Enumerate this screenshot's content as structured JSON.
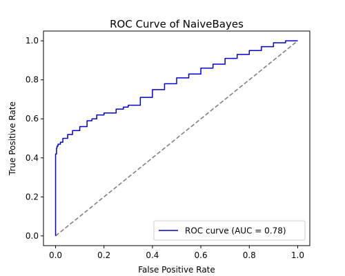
{
  "chart_data": {
    "type": "line",
    "title": "ROC Curve of NaiveBayes",
    "xlabel": "False Positive Rate",
    "ylabel": "True Positive Rate",
    "xlim": [
      -0.05,
      1.05
    ],
    "ylim": [
      -0.05,
      1.05
    ],
    "xticks": [
      "0.0",
      "0.2",
      "0.4",
      "0.6",
      "0.8",
      "1.0"
    ],
    "yticks": [
      "0.0",
      "0.2",
      "0.4",
      "0.6",
      "0.8",
      "1.0"
    ],
    "grid": false,
    "legend_position": "lower-right",
    "series": [
      {
        "name": "ROC curve (AUC = 0.78)",
        "color": "#0000cc",
        "style": "solid",
        "x": [
          0.0,
          0.0,
          0.004,
          0.006,
          0.01,
          0.02,
          0.03,
          0.05,
          0.07,
          0.1,
          0.13,
          0.15,
          0.17,
          0.2,
          0.25,
          0.28,
          0.3,
          0.35,
          0.4,
          0.45,
          0.5,
          0.55,
          0.6,
          0.65,
          0.7,
          0.75,
          0.8,
          0.85,
          0.9,
          0.95,
          1.0
        ],
        "y": [
          0.0,
          0.42,
          0.45,
          0.46,
          0.47,
          0.48,
          0.5,
          0.52,
          0.54,
          0.56,
          0.59,
          0.6,
          0.62,
          0.63,
          0.65,
          0.66,
          0.67,
          0.71,
          0.75,
          0.78,
          0.81,
          0.83,
          0.86,
          0.88,
          0.91,
          0.93,
          0.95,
          0.97,
          0.99,
          1.0,
          1.0
        ]
      },
      {
        "name": "",
        "color": "#808080",
        "style": "dashed",
        "x": [
          0.0,
          1.0
        ],
        "y": [
          0.0,
          1.0
        ]
      }
    ]
  }
}
